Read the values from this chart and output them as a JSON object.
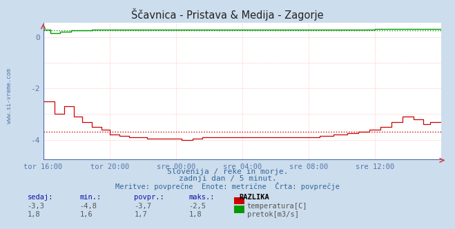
{
  "title": "Ščavnica - Pristava & Medija - Zagorje",
  "subtitle1": "Slovenija / reke in morje.",
  "subtitle2": "zadnji dan / 5 minut.",
  "subtitle3": "Meritve: povprečne  Enote: metrične  Črta: povprečje",
  "bg_color": "#ccdded",
  "plot_bg_color": "#ffffff",
  "grid_color": "#ffb0b0",
  "grid_color2": "#c8d8e8",
  "xticklabels": [
    "tor 16:00",
    "tor 20:00",
    "sre 00:00",
    "sre 04:00",
    "sre 08:00",
    "sre 12:00"
  ],
  "yticks": [
    -4,
    -2,
    0
  ],
  "ylim": [
    -4.8,
    0.55
  ],
  "xlim": [
    0,
    288
  ],
  "temp_color": "#cc0000",
  "flow_color": "#009900",
  "temp_avg": -3.7,
  "flow_avg_y": 0.27,
  "watermark": "www.si-vreme.com",
  "table_headers": [
    "sedaj:",
    "min.:",
    "povpr.:",
    "maks.:",
    "RAZLIKA"
  ],
  "temp_row": [
    "-3,3",
    "-4,8",
    "-3,7",
    "-2,5"
  ],
  "flow_row": [
    "1,8",
    "1,6",
    "1,7",
    "1,8"
  ],
  "label_temp": "temperatura[C]",
  "label_flow": "pretok[m3/s]",
  "ylabel_text": "www.si-vreme.com",
  "border_color": "#5577aa",
  "tick_color": "#5577aa"
}
